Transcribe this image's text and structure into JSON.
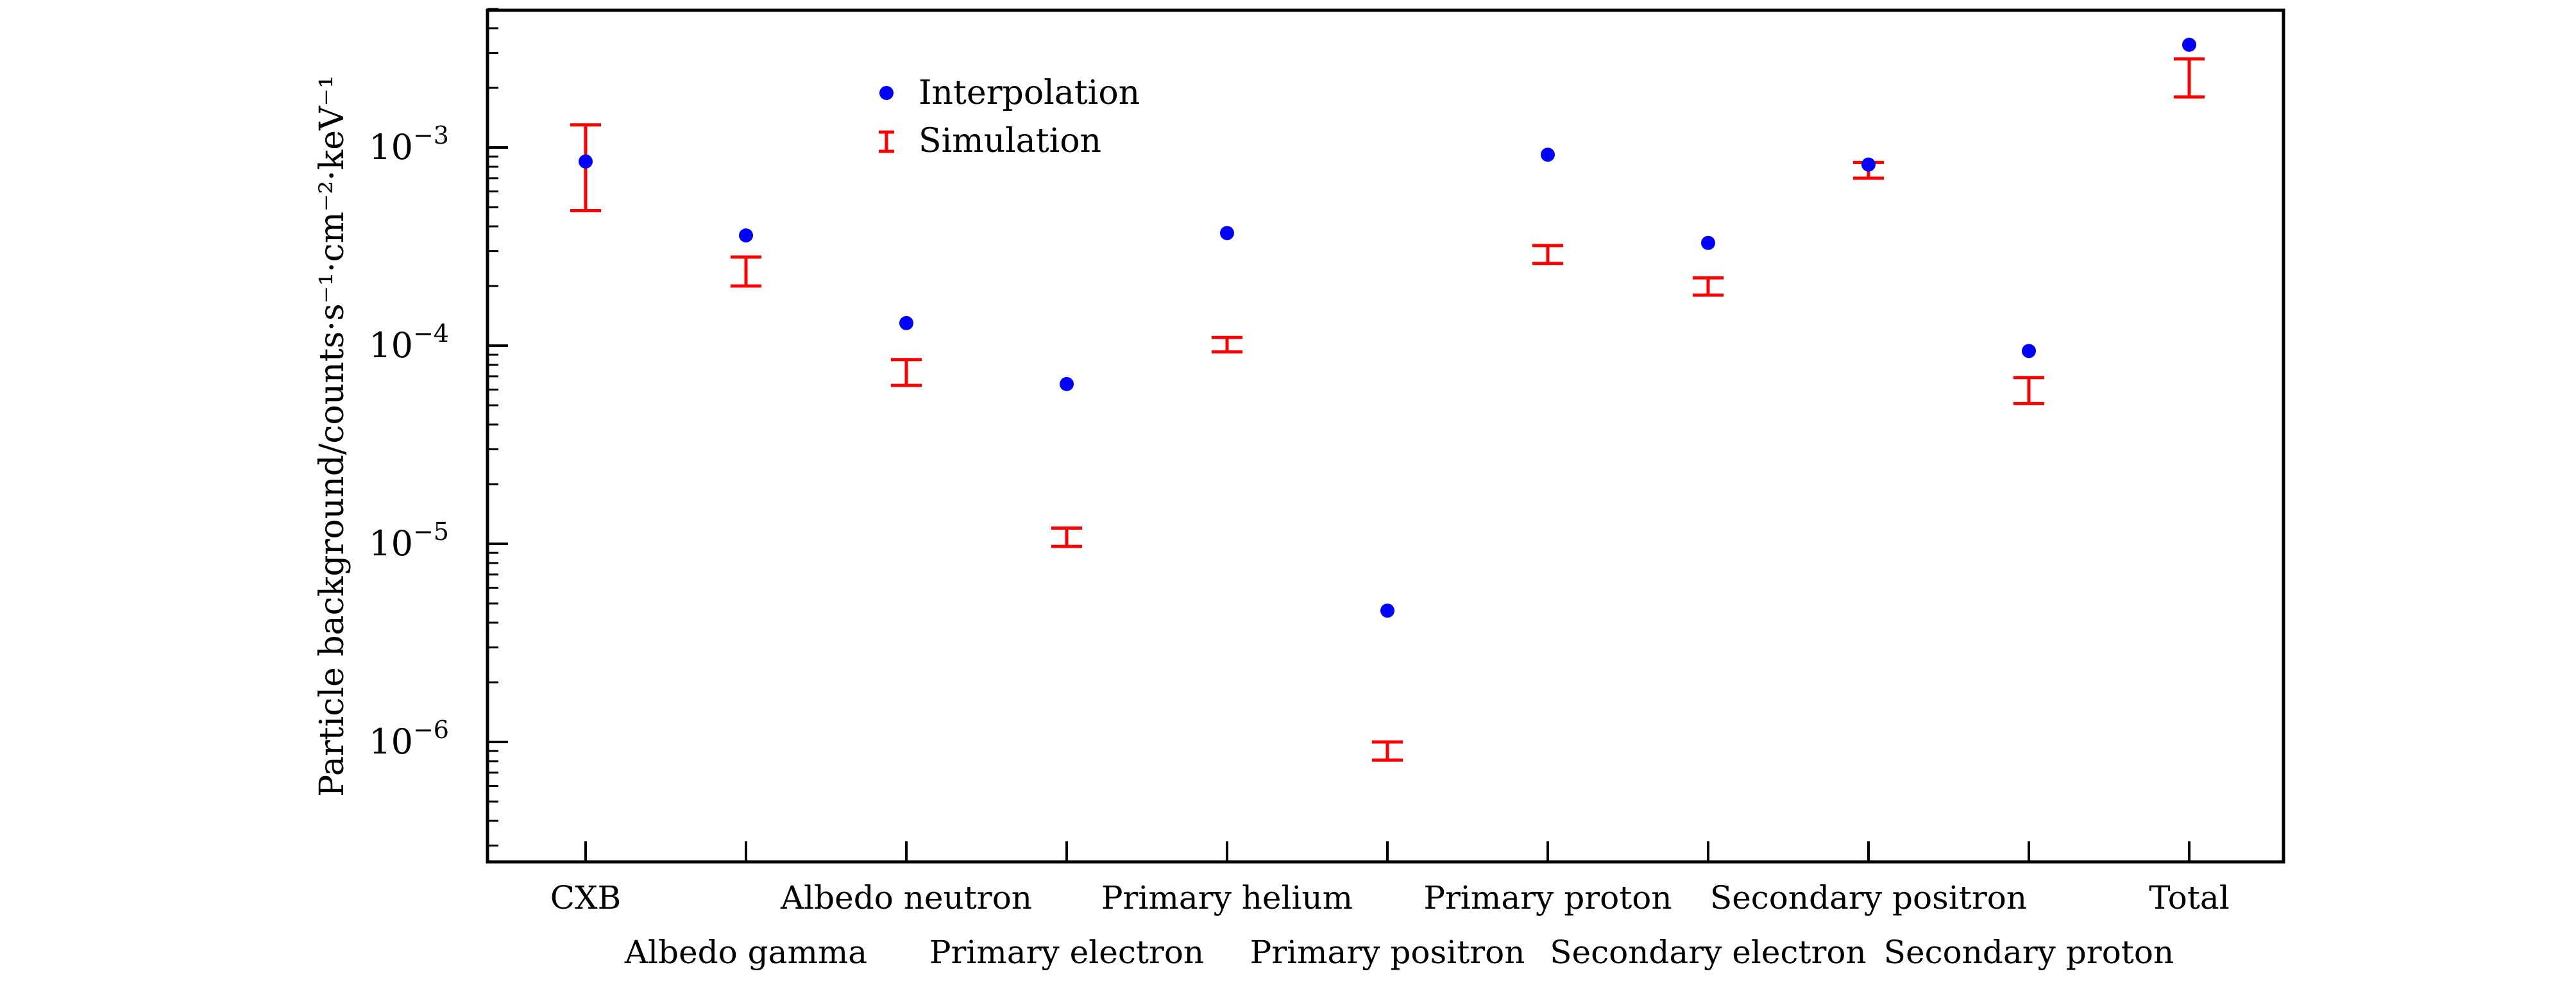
{
  "chart_data": {
    "type": "scatter",
    "title": "",
    "xlabel": "",
    "ylabel": "Particle background/counts·s⁻¹·cm⁻²·keV⁻¹",
    "yscale": "log",
    "ylim": [
      3e-07,
      0.006
    ],
    "yticks": [
      {
        "value": 0.001,
        "mantissa": "10",
        "exp": "−3"
      },
      {
        "value": 0.0001,
        "mantissa": "10",
        "exp": "−4"
      },
      {
        "value": 1e-05,
        "mantissa": "10",
        "exp": "−5"
      },
      {
        "value": 1e-06,
        "mantissa": "10",
        "exp": "−6"
      }
    ],
    "categories": [
      "CXB",
      "Albedo gamma",
      "Albedo neutron",
      "Primary electron",
      "Primary helium",
      "Primary positron",
      "Primary proton",
      "Secondary electron",
      "Secondary positron",
      "Secondary proton",
      "Total"
    ],
    "series": [
      {
        "name": "Interpolation",
        "marker": "point",
        "color": "#0000ff",
        "values": [
          0.00085,
          0.00036,
          0.00013,
          6.4e-05,
          0.00037,
          4.6e-06,
          0.00092,
          0.00033,
          0.00082,
          9.4e-05,
          0.0033
        ]
      },
      {
        "name": "Simulation",
        "marker": "errorbar",
        "color": "#ff0000",
        "lower": [
          0.00048,
          0.0002,
          6.3e-05,
          9.7e-06,
          9.3e-05,
          8.1e-07,
          0.00026,
          0.00018,
          0.0007,
          5.1e-05,
          0.0018
        ],
        "upper": [
          0.0013,
          0.00028,
          8.5e-05,
          1.2e-05,
          0.00011,
          1e-06,
          0.00032,
          0.00022,
          0.00084,
          6.9e-05,
          0.0028
        ]
      }
    ],
    "legend_position": "top-center",
    "grid": false
  }
}
